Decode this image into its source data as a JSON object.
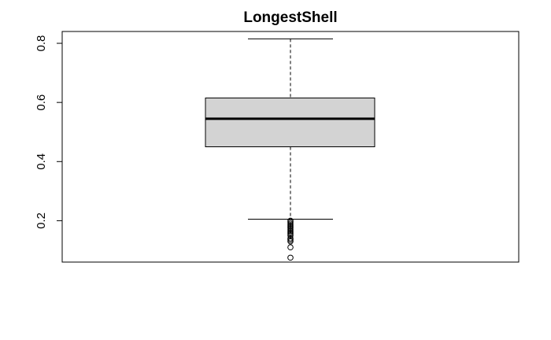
{
  "chart_data": {
    "type": "box",
    "title": "LongestShell",
    "xlabel": "",
    "ylabel": "",
    "ylim": [
      0.06,
      0.84
    ],
    "yticks": [
      0.2,
      0.4,
      0.6,
      0.8
    ],
    "ytick_labels": [
      "0.2",
      "0.4",
      "0.6",
      "0.8"
    ],
    "grid": false,
    "box": {
      "whisker_low": 0.205,
      "q1": 0.45,
      "median": 0.545,
      "q3": 0.615,
      "whisker_high": 0.815
    },
    "outliers": [
      0.2,
      0.195,
      0.19,
      0.185,
      0.18,
      0.175,
      0.17,
      0.165,
      0.16,
      0.155,
      0.15,
      0.14,
      0.135,
      0.13,
      0.11,
      0.075
    ],
    "colors": {
      "box_fill": "#d3d3d3",
      "line": "#000000"
    }
  }
}
